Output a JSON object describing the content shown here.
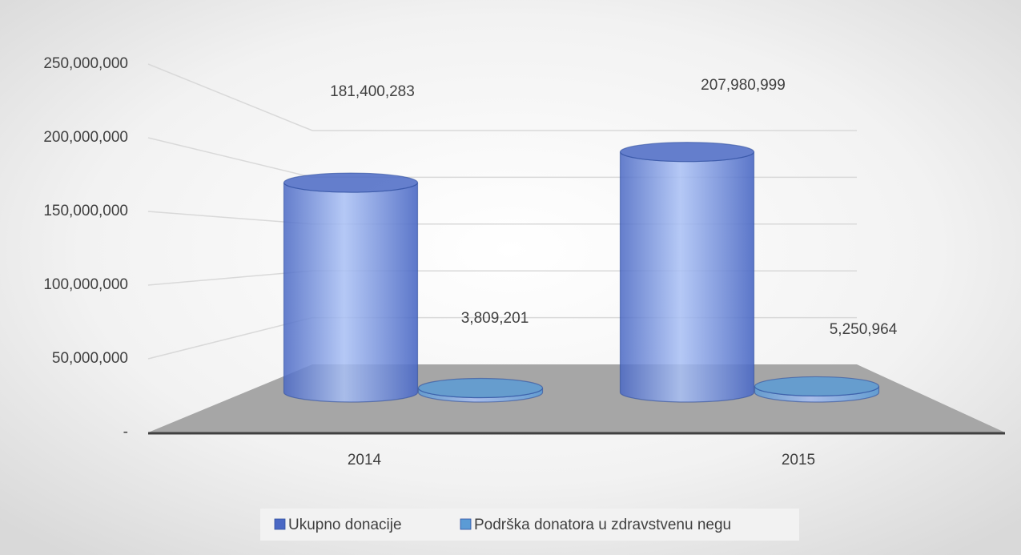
{
  "chart_data": {
    "type": "bar3d",
    "categories": [
      "2014",
      "2015"
    ],
    "series": [
      {
        "name": "Ukupno donacije",
        "color": "#4a68c4",
        "values": [
          181400283,
          207980999
        ],
        "value_labels": [
          "181,400,283",
          "207,980,999"
        ]
      },
      {
        "name": "Podrška donatora u zdravstvenu negu",
        "color": "#5b9bd5",
        "values": [
          3809201,
          5250964
        ],
        "value_labels": [
          "3,809,201",
          "5,250,964"
        ]
      }
    ],
    "ylim": [
      0,
      250000000
    ],
    "yticks": [
      {
        "value": 0,
        "label": "-"
      },
      {
        "value": 50000000,
        "label": "50,000,000"
      },
      {
        "value": 100000000,
        "label": "100,000,000"
      },
      {
        "value": 150000000,
        "label": "150,000,000"
      },
      {
        "value": 200000000,
        "label": "200,000,000"
      },
      {
        "value": 250000000,
        "label": "250,000,000"
      }
    ],
    "grid": true,
    "legend": "bottom"
  }
}
